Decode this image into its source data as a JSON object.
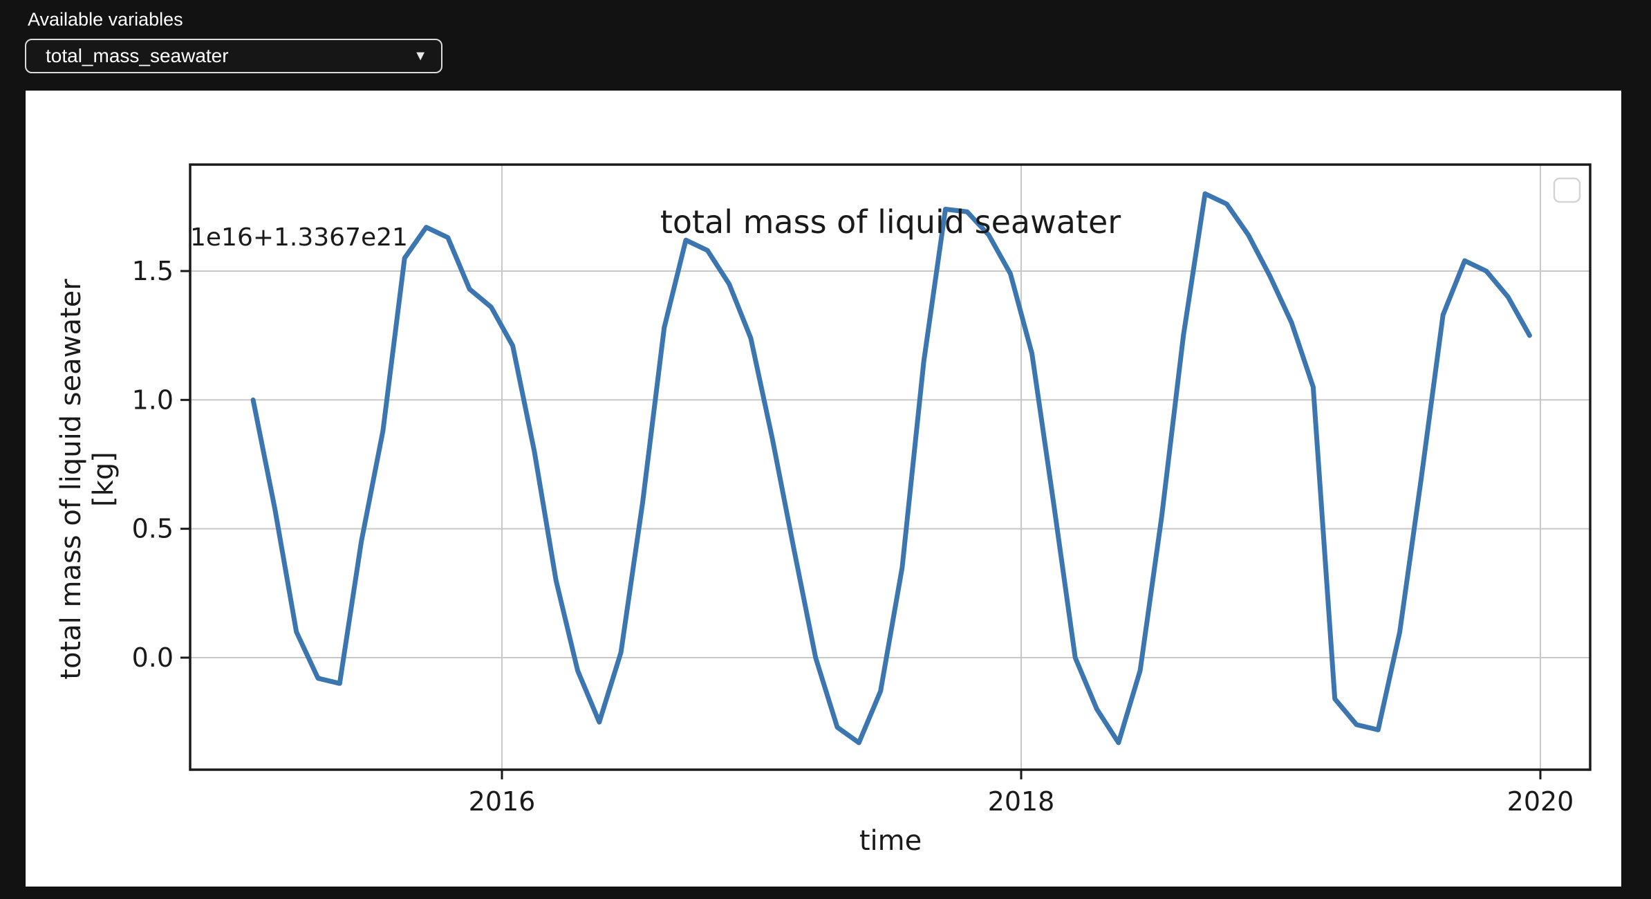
{
  "controls": {
    "label": "Available variables",
    "dropdown_value": "total_mass_seawater",
    "dropdown_caret": "▼"
  },
  "figure": {
    "title": "total mass of liquid seawater",
    "offset_text": "1e16+1.3367e21",
    "xlabel": "time",
    "ylabel_line1": "total mass of liquid seawater",
    "ylabel_line2": "[kg]"
  },
  "chart_data": {
    "type": "line",
    "title": "total mass of liquid seawater",
    "xlabel": "time",
    "ylabel": "total mass of liquid seawater [kg]",
    "y_offset_text": "1e16+1.3367e21",
    "frequency": "monthly",
    "x_range": [
      "2015-01",
      "2019-12"
    ],
    "values_by_year": {
      "2015": [
        1.0,
        0.58,
        0.1,
        -0.08,
        -0.1,
        0.45,
        0.88,
        1.55,
        1.67,
        1.63,
        1.43,
        1.36
      ],
      "2016": [
        1.21,
        0.8,
        0.3,
        -0.05,
        -0.25,
        0.02,
        0.6,
        1.28,
        1.62,
        1.58,
        1.45,
        1.24
      ],
      "2017": [
        0.85,
        0.42,
        0.0,
        -0.27,
        -0.33,
        -0.13,
        0.35,
        1.15,
        1.74,
        1.73,
        1.64,
        1.49
      ],
      "2018": [
        1.18,
        0.6,
        0.0,
        -0.2,
        -0.33,
        -0.05,
        0.55,
        1.25,
        1.8,
        1.76,
        1.64,
        1.48
      ],
      "2019": [
        1.3,
        1.05,
        -0.16,
        -0.26,
        -0.28,
        0.1,
        0.7,
        1.33,
        1.54,
        1.5,
        1.4,
        1.25
      ]
    },
    "x_tick_labels": [
      "2016",
      "2018",
      "2020"
    ],
    "x_tick_years": [
      2016,
      2018,
      2020
    ],
    "y_tick_labels": [
      "0.0",
      "0.5",
      "1.0",
      "1.5"
    ],
    "y_ticks": [
      0.0,
      0.5,
      1.0,
      1.5
    ],
    "ylim": [
      -0.435,
      1.913
    ],
    "xlim_years": [
      2014.8,
      2020.19
    ],
    "grid": true,
    "grid_color": "#c8c8c8",
    "line_color": "#3c76b0",
    "spine_color": "#1a1a1a",
    "legend": "empty-box"
  }
}
